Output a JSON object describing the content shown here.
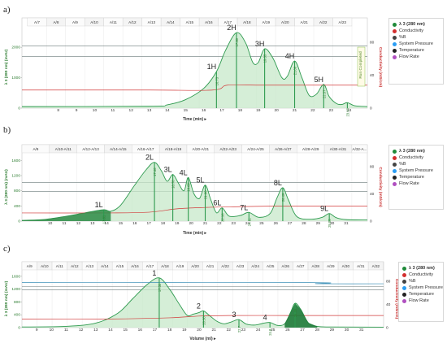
{
  "panels": [
    {
      "label": "a)",
      "colors": {
        "trace": "#2e9a4f",
        "fill": "#c7e8c9",
        "conductivity": "#d23b3b",
        "pressure": "#3a8fb7",
        "hline": "#6b7a7a"
      },
      "legend": [
        {
          "label": "λ 3 (280 nm)",
          "color": "#1f8a3a"
        },
        {
          "label": "Conductivity",
          "color": "#d32f2f"
        },
        {
          "label": "%B",
          "color": "#444444"
        },
        {
          "label": "System Pressure",
          "color": "#2a9df4"
        },
        {
          "label": "Temperature",
          "color": "#222222"
        },
        {
          "label": "Flow Rate",
          "color": "#b04fc0"
        }
      ],
      "chart_data": {
        "type": "line",
        "xlabel": "Time (min)",
        "ylabel": "λ 3 (280 nm) (mAU)",
        "y2label": "Conductivity (mS/cm)",
        "xlim": [
          6,
          25
        ],
        "ylim": [
          0,
          2700
        ],
        "y2lim": [
          0,
          100
        ],
        "x_ticks": [
          8,
          9,
          10,
          11,
          12,
          13,
          14,
          15,
          16,
          17,
          18,
          19,
          20,
          21,
          22,
          23,
          24
        ],
        "y_ticks": [
          0,
          1000,
          2000
        ],
        "y2_ticks": [
          0,
          40,
          80
        ],
        "fractions": [
          "A/7",
          "A/8",
          "A/9",
          "A/10",
          "A/11",
          "A/12",
          "A/13",
          "A/14",
          "A/15",
          "A/16",
          "A/17",
          "A/18",
          "A/19",
          "A/20",
          "A/21",
          "A/22",
          "A/23"
        ],
        "fraction_start": 6.3,
        "fraction_width": 1.05,
        "reference_lines": [
          1700,
          2050
        ],
        "annotation_text": "Run Completed",
        "peaks": [
          {
            "label": "1H",
            "x": 16.7,
            "y": 980,
            "apex_label": "16.73"
          },
          {
            "label": "2H",
            "x": 17.8,
            "y": 2450,
            "apex_label": "17.80"
          },
          {
            "label": "3H",
            "x": 19.35,
            "y": 1950,
            "apex_label": "19.35"
          },
          {
            "label": "4H",
            "x": 21.0,
            "y": 1550,
            "apex_label": "21.00"
          },
          {
            "label": "5H",
            "x": 22.6,
            "y": 750,
            "apex_label": "22.57"
          },
          {
            "label": "",
            "x": 23.9,
            "y": 120,
            "apex_label": "23.93"
          }
        ],
        "series": [
          {
            "name": "λ 3 (280 nm)",
            "x": [
              6,
              13,
              14,
              15,
              16,
              16.7,
              17.2,
              17.8,
              18.3,
              18.7,
              19.0,
              19.35,
              19.8,
              20.3,
              20.6,
              21.0,
              21.4,
              21.8,
              22.2,
              22.6,
              22.9,
              23.3,
              23.6,
              23.9,
              24.3,
              25
            ],
            "y": [
              50,
              60,
              110,
              280,
              650,
              1200,
              1900,
              2480,
              2150,
              1500,
              1500,
              1950,
              1650,
              1000,
              1050,
              1550,
              1000,
              420,
              460,
              780,
              380,
              150,
              120,
              180,
              80,
              50
            ]
          },
          {
            "name": "Conductivity",
            "x": [
              6,
              13,
              16.5,
              17.3,
              19.0,
              21.0,
              24,
              25
            ],
            "y": [
              22,
              22,
              22,
              28,
              28,
              28,
              28,
              28
            ]
          }
        ]
      }
    },
    {
      "label": "b)",
      "colors": {
        "trace": "#2e9a4f",
        "fill": "#c7e8c9",
        "conductivity": "#d23b3b",
        "pressure": "#3a8fb7",
        "hline": "#6b7a7a"
      },
      "legend": [
        {
          "label": "λ 3 (280 nm)",
          "color": "#1f8a3a"
        },
        {
          "label": "Conductivity",
          "color": "#d32f2f"
        },
        {
          "label": "%B",
          "color": "#444444"
        },
        {
          "label": "System Pressure",
          "color": "#2a9df4"
        },
        {
          "label": "Temperature",
          "color": "#222222"
        },
        {
          "label": "Flow Rate",
          "color": "#b04fc0"
        }
      ],
      "chart_data": {
        "type": "line",
        "xlabel": "Time (min)",
        "ylabel": "λ 3 (280 nm) (mAU)",
        "y2label": "Conductivity (mS/cm)",
        "xlim": [
          8,
          32.5
        ],
        "ylim": [
          0,
          1800
        ],
        "y2lim": [
          0,
          100
        ],
        "x_ticks": [
          10,
          11,
          12,
          13,
          14,
          15,
          16,
          17,
          18,
          19,
          20,
          21,
          22,
          23,
          24,
          25,
          26,
          27,
          28,
          29,
          30,
          31
        ],
        "y_ticks": [
          0,
          400,
          800,
          1200,
          1600
        ],
        "y2_ticks": [
          0,
          40,
          80
        ],
        "fractions": [
          "A/9",
          "A/10-A/11",
          "A/12-A/13",
          "A/14-A/15",
          "A/16-A/17",
          "A/18-A/19",
          "A/20-A/21",
          "A/22-A/23",
          "A/24-A/25",
          "A/26-A/27",
          "A/28-A/29",
          "A/30-A/31",
          "A/32-A..."
        ],
        "fraction_start": 8.0,
        "fraction_width": 1.95,
        "reference_lines": [
          780,
          1020
        ],
        "peaks": [
          {
            "label": "1L",
            "x": 13.8,
            "y": 300,
            "apex_label": "13.81"
          },
          {
            "label": "2L",
            "x": 17.4,
            "y": 1550,
            "apex_label": "17.40"
          },
          {
            "label": "3L",
            "x": 18.7,
            "y": 1230,
            "apex_label": "18.70"
          },
          {
            "label": "4L",
            "x": 19.8,
            "y": 1150,
            "apex_label": "19.80"
          },
          {
            "label": "5L",
            "x": 21.0,
            "y": 950,
            "apex_label": "21.00"
          },
          {
            "label": "6L",
            "x": 22.2,
            "y": 350,
            "apex_label": "22.16"
          },
          {
            "label": "7L",
            "x": 24.1,
            "y": 230,
            "apex_label": "24.11"
          },
          {
            "label": "8L",
            "x": 26.5,
            "y": 880,
            "apex_label": "26.49"
          },
          {
            "label": "9L",
            "x": 29.8,
            "y": 200,
            "apex_label": "29.85"
          }
        ],
        "series": [
          {
            "name": "λ 3 (280 nm)",
            "x": [
              8,
              9.5,
              11,
              12.5,
              13.8,
              14.3,
              15,
              16,
              16.8,
              17.4,
              17.9,
              18.3,
              18.7,
              19.1,
              19.5,
              19.8,
              20.2,
              20.6,
              21.0,
              21.4,
              21.8,
              22.2,
              22.7,
              23.5,
              24.1,
              24.8,
              25.6,
              26.1,
              26.5,
              26.9,
              27.5,
              28.5,
              29.3,
              29.8,
              30.3,
              31.0,
              32.5
            ],
            "y": [
              20,
              40,
              120,
              220,
              300,
              260,
              420,
              950,
              1350,
              1550,
              1320,
              1050,
              1230,
              1000,
              800,
              1150,
              720,
              600,
              950,
              560,
              220,
              350,
              130,
              150,
              230,
              100,
              200,
              620,
              880,
              560,
              120,
              50,
              100,
              200,
              90,
              40,
              30
            ]
          },
          {
            "name": "Conductivity",
            "x": [
              8,
              14,
              17,
              19,
              21,
              23,
              26,
              28,
              32.5
            ],
            "y": [
              12,
              12,
              13,
              18,
              20,
              21,
              22,
              22,
              22
            ]
          }
        ]
      }
    },
    {
      "label": "c)",
      "colors": {
        "trace": "#2e9a4f",
        "fill": "#c7e8c9",
        "conductivity": "#d23b3b",
        "pressure": "#3a8fb7",
        "hline": "#6b7a7a",
        "dark_fill": "#1f7a3a"
      },
      "legend": [
        {
          "label": "λ 3 (280 nm)",
          "color": "#1f8a3a"
        },
        {
          "label": "Conductivity",
          "color": "#d32f2f"
        },
        {
          "label": "%B",
          "color": "#444444"
        },
        {
          "label": "System Pressure",
          "color": "#2a9df4"
        },
        {
          "label": "Temperature",
          "color": "#222222"
        },
        {
          "label": "Flow Rate",
          "color": "#b04fc0"
        }
      ],
      "chart_data": {
        "type": "line",
        "xlabel": "Volume (ml)",
        "ylabel": "λ 3 (280 nm) (mAU)",
        "y2label": "Conductivity (mS/cm)",
        "xlim": [
          8,
          32.5
        ],
        "ylim": [
          0,
          1800
        ],
        "y2lim": [
          0,
          100
        ],
        "x_ticks": [
          9,
          10,
          11,
          12,
          13,
          14,
          15,
          16,
          17,
          18,
          19,
          20,
          21,
          22,
          23,
          24,
          25,
          26,
          27,
          28,
          29,
          30,
          31
        ],
        "y_ticks": [
          0,
          400,
          800,
          1200,
          1600
        ],
        "y2_ticks": [
          0,
          40,
          80
        ],
        "fractions": [
          "A/9",
          "A/10",
          "A/11",
          "A/12",
          "A/13",
          "A/14",
          "A/15",
          "A/16",
          "A/17",
          "A/18",
          "A/19",
          "A/20",
          "A/21",
          "A/22",
          "A/23",
          "A/24",
          "A/25",
          "A/26",
          "A/27",
          "A/28",
          "A/29",
          "A/30",
          "A/31",
          "A/32"
        ],
        "fraction_start": 8.0,
        "fraction_width": 1.02,
        "reference_lines": [
          1180,
          1280
        ],
        "peaks": [
          {
            "label": "1",
            "x": 17.3,
            "y": 1550,
            "apex_label": "17.30"
          },
          {
            "label": "2",
            "x": 20.3,
            "y": 520,
            "apex_label": "20.30"
          },
          {
            "label": "3",
            "x": 22.7,
            "y": 250,
            "apex_label": "22.7"
          },
          {
            "label": "4",
            "x": 24.8,
            "y": 160,
            "apex_label": "24.8"
          },
          {
            "label": "",
            "x": 26.5,
            "y": 760,
            "apex_label": "26.49"
          }
        ],
        "series": [
          {
            "name": "λ 3 (280 nm)",
            "x": [
              8,
              11,
              13,
              14.5,
              15.5,
              16.5,
              17.3,
              18.0,
              18.7,
              19.2,
              19.6,
              20.0,
              20.3,
              20.7,
              21.2,
              21.7,
              22.2,
              22.7,
              23.2,
              23.8,
              24.3,
              24.8,
              25.3,
              25.8,
              26.2,
              26.5,
              26.9,
              27.4,
              28.0,
              29.0,
              32.5
            ],
            "y": [
              20,
              40,
              140,
              450,
              900,
              1350,
              1550,
              1200,
              700,
              380,
              420,
              470,
              520,
              380,
              200,
              120,
              180,
              250,
              110,
              80,
              130,
              160,
              70,
              120,
              480,
              760,
              560,
              150,
              40,
              20,
              15
            ]
          },
          {
            "name": "Conductivity",
            "x": [
              8,
              14,
              18,
              20,
              22,
              26,
              29,
              32.5
            ],
            "y": [
              15,
              15,
              17,
              20,
              21,
              21,
              21,
              21
            ]
          },
          {
            "name": "System Pressure",
            "x": [
              8,
              27.5,
              28.0,
              32.5
            ],
            "y": [
              78,
              78,
              76,
              76
            ]
          }
        ]
      }
    }
  ]
}
